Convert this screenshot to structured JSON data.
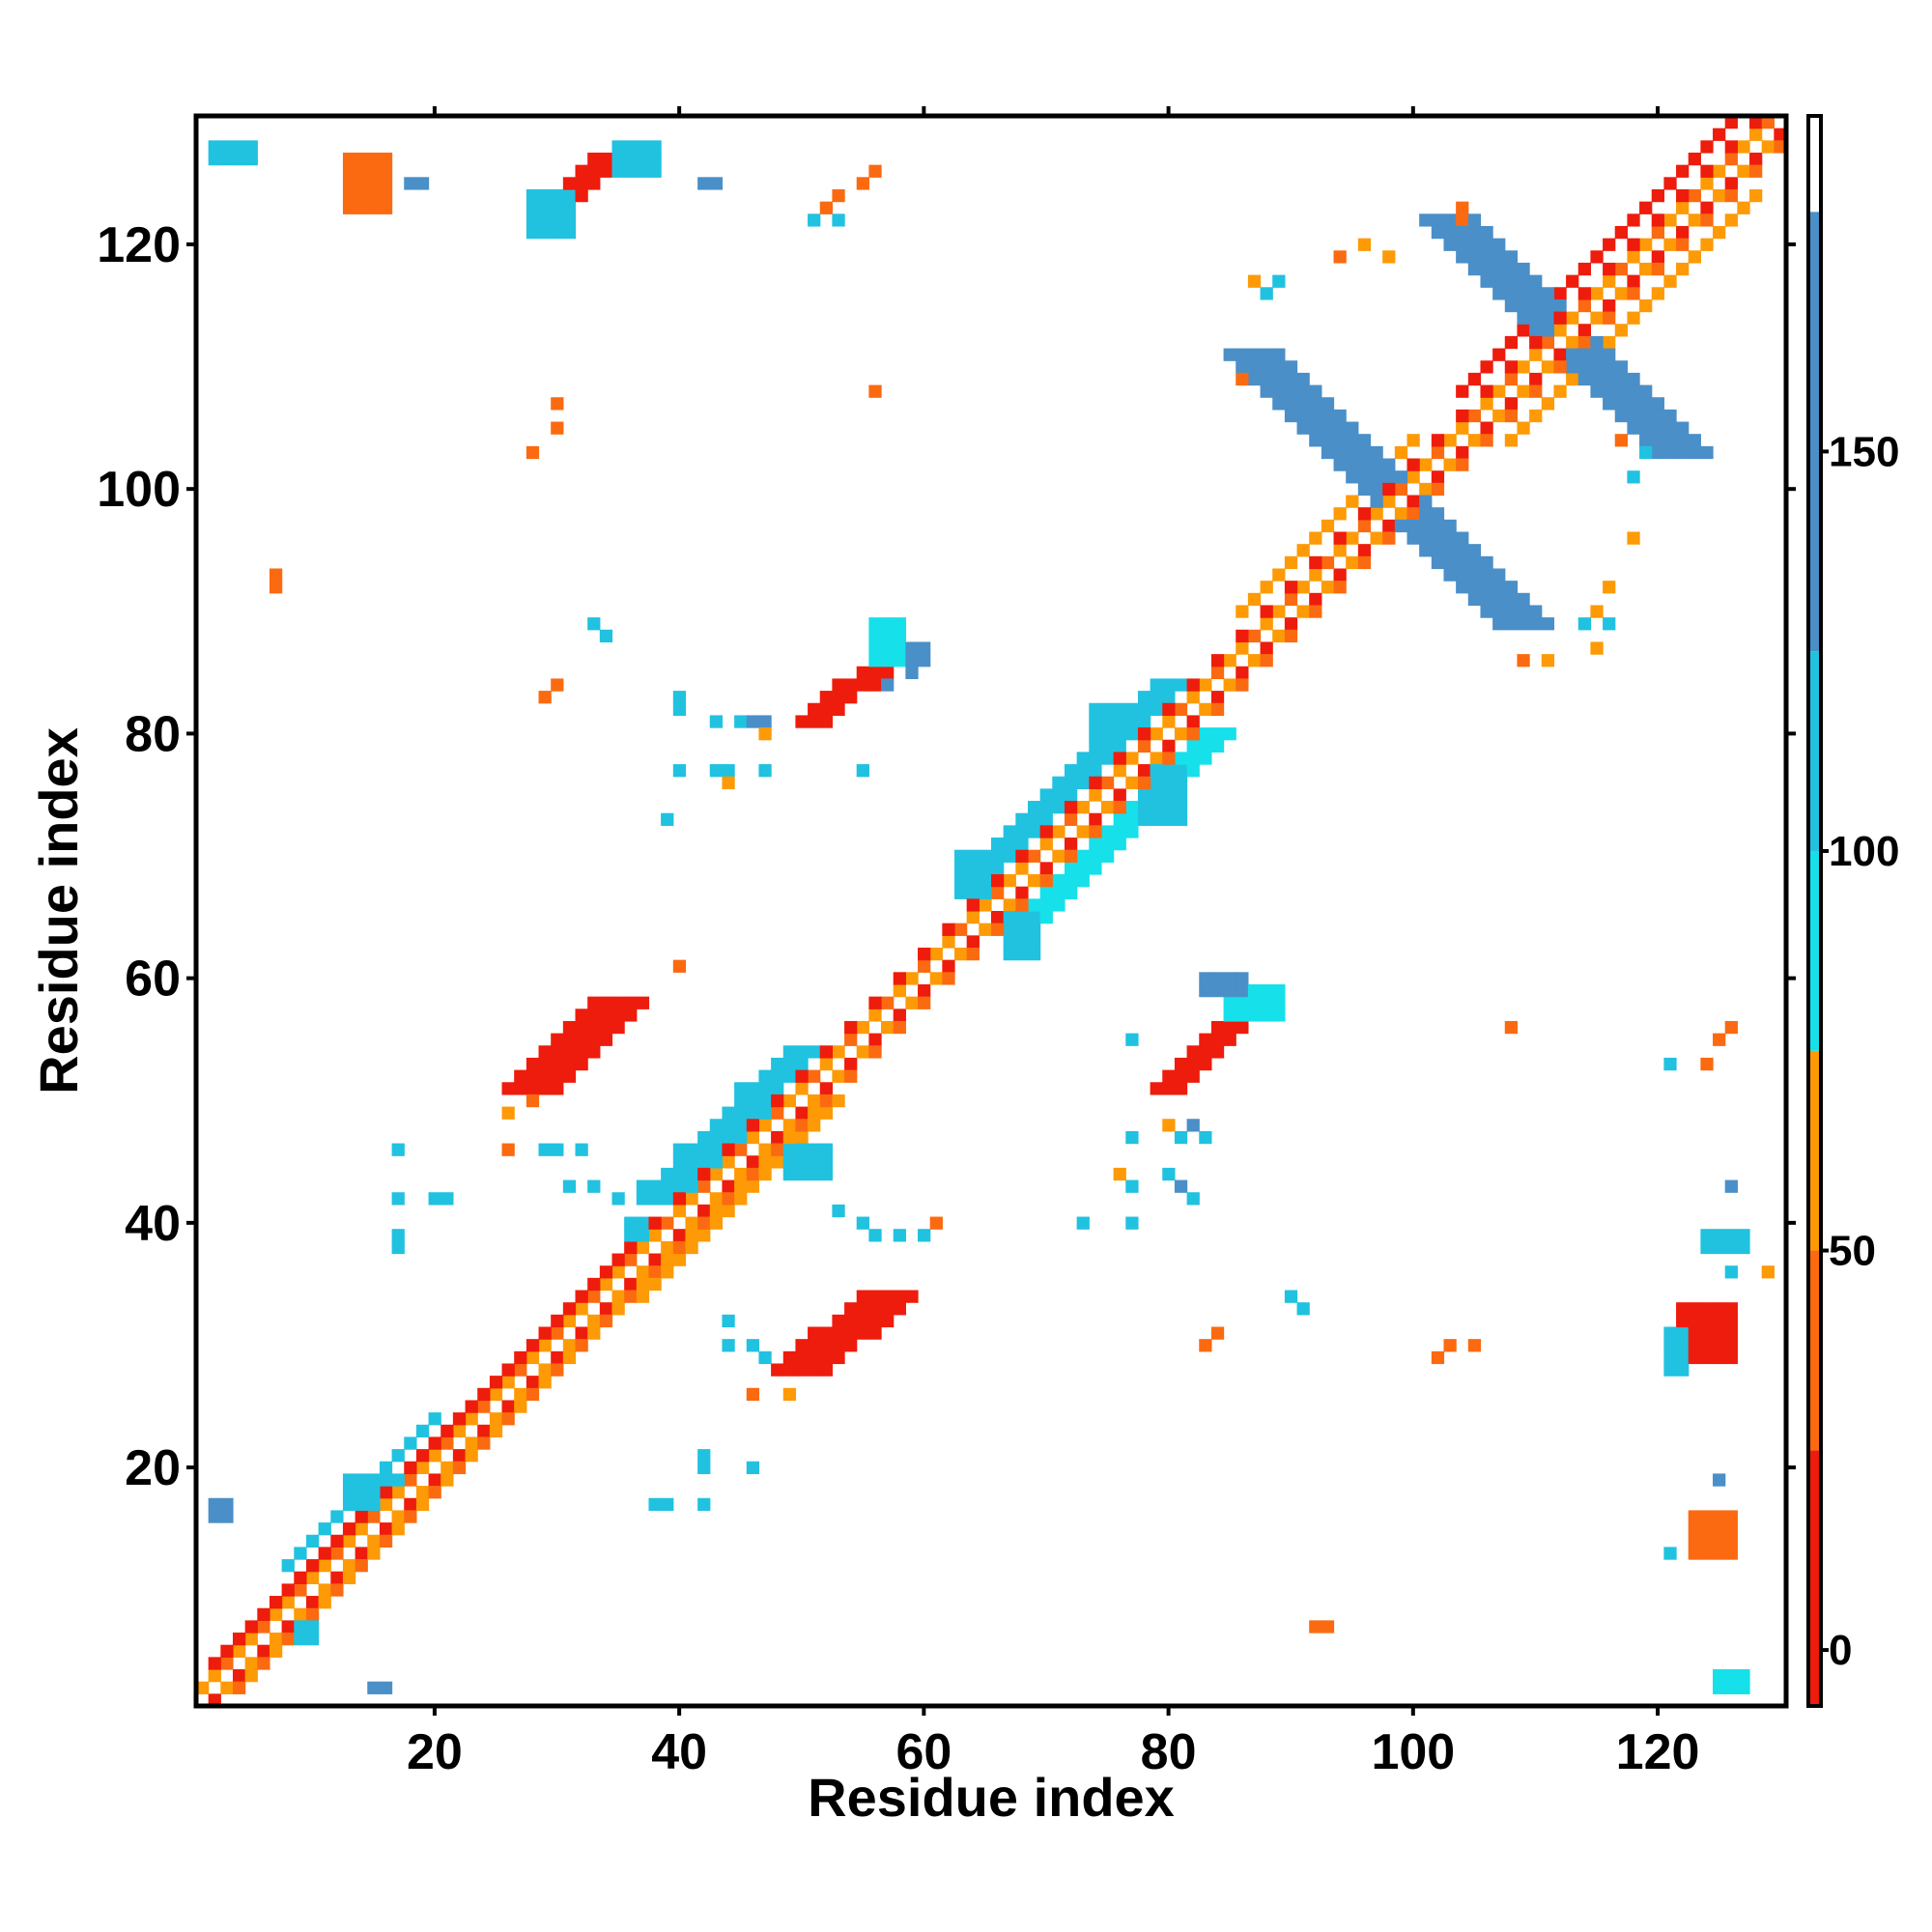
{
  "chart_data": {
    "type": "heatmap",
    "title": "",
    "xlabel": "Residue index",
    "ylabel": "Residue index",
    "xlim": [
      1,
      130
    ],
    "ylim": [
      1,
      130
    ],
    "x_ticks": [
      20,
      40,
      60,
      80,
      100,
      120
    ],
    "y_ticks": [
      20,
      40,
      60,
      80,
      100,
      120
    ],
    "colorbar": {
      "ticks": [
        0,
        50,
        100,
        150
      ],
      "range": [
        -7,
        192
      ],
      "stops": [
        {
          "from": -7,
          "to": 25,
          "color": "#ee1c0c"
        },
        {
          "from": 25,
          "to": 50,
          "color": "#fb6a10"
        },
        {
          "from": 50,
          "to": 75,
          "color": "#fd9a06"
        },
        {
          "from": 75,
          "to": 100,
          "color": "#16e0ea"
        },
        {
          "from": 100,
          "to": 125,
          "color": "#20c2e0"
        },
        {
          "from": 125,
          "to": 180,
          "color": "#4a8fc8"
        },
        {
          "from": 180,
          "to": 192,
          "color": "#ffffff"
        }
      ]
    },
    "cell_colors": {
      "red": "#ee1c0c",
      "orange": "#fb6a10",
      "light_orange": "#fd9a06",
      "cyan": "#16e0ea",
      "light_blue": "#20c2e0",
      "steel_blue": "#4a8fc8"
    },
    "regions": [
      {
        "kind": "band",
        "x1": 1,
        "y1": 1,
        "x2": 129,
        "y2": 129,
        "width": 2,
        "value": 35
      },
      {
        "kind": "band",
        "x1": 4,
        "y1": 2,
        "x2": 38,
        "y2": 36,
        "width": 1,
        "value": 60
      },
      {
        "kind": "band",
        "x1": 2,
        "y1": 4,
        "x2": 36,
        "y2": 38,
        "width": 1,
        "value": 10
      },
      {
        "kind": "band",
        "x1": 36,
        "y1": 34,
        "x2": 52,
        "y2": 50,
        "width": 2,
        "value": 60
      },
      {
        "kind": "band",
        "x1": 38,
        "y1": 42,
        "x2": 50,
        "y2": 54,
        "width": 2,
        "value": 110
      },
      {
        "kind": "band",
        "x1": 64,
        "y1": 68,
        "x2": 80,
        "y2": 84,
        "width": 2,
        "value": 110
      },
      {
        "kind": "band",
        "x1": 68,
        "y1": 64,
        "x2": 84,
        "y2": 80,
        "width": 2,
        "value": 90
      },
      {
        "kind": "band",
        "x1": 8,
        "y1": 12,
        "x2": 20,
        "y2": 24,
        "width": 1,
        "value": 110
      },
      {
        "kind": "band",
        "x1": 86,
        "y1": 90,
        "x2": 100,
        "y2": 104,
        "width": 1,
        "value": 60
      },
      {
        "kind": "band",
        "x1": 104,
        "y1": 108,
        "x2": 126,
        "y2": 130,
        "width": 1,
        "value": 10
      },
      {
        "kind": "band",
        "x1": 108,
        "y1": 104,
        "x2": 128,
        "y2": 124,
        "width": 1,
        "value": 60
      },
      {
        "kind": "band",
        "x1": 103,
        "y1": 122,
        "x2": 122,
        "y2": 103,
        "width": 3,
        "value": 150
      },
      {
        "kind": "band",
        "x1": 87,
        "y1": 111,
        "x2": 100,
        "y2": 98,
        "width": 3,
        "value": 140
      },
      {
        "kind": "band",
        "x1": 101,
        "y1": 97,
        "x2": 109,
        "y2": 89,
        "width": 3,
        "value": 140
      },
      {
        "kind": "band",
        "x1": 28,
        "y1": 51,
        "x2": 35,
        "y2": 58,
        "width": 3,
        "value": 10
      },
      {
        "kind": "band",
        "x1": 50,
        "y1": 28,
        "x2": 57,
        "y2": 34,
        "width": 3,
        "value": 10
      },
      {
        "kind": "band",
        "x1": 51,
        "y1": 81,
        "x2": 58,
        "y2": 87,
        "width": 2,
        "value": 10
      },
      {
        "kind": "band",
        "x1": 80,
        "y1": 51,
        "x2": 86,
        "y2": 57,
        "width": 2,
        "value": 10
      },
      {
        "kind": "band",
        "x1": 29,
        "y1": 122,
        "x2": 34,
        "y2": 127,
        "width": 2,
        "value": 10
      },
      {
        "kind": "rect",
        "x1": 13,
        "y1": 123,
        "x2": 16,
        "y2": 127,
        "value": 40
      },
      {
        "kind": "rect",
        "x1": 28,
        "y1": 121,
        "x2": 31,
        "y2": 124,
        "value": 120
      },
      {
        "kind": "rect",
        "x1": 35,
        "y1": 126,
        "x2": 38,
        "y2": 128,
        "value": 120
      },
      {
        "kind": "rect",
        "x1": 2,
        "y1": 127,
        "x2": 5,
        "y2": 128,
        "value": 120
      },
      {
        "kind": "rect",
        "x1": 56,
        "y1": 86,
        "x2": 58,
        "y2": 89,
        "value": 90
      },
      {
        "kind": "rect",
        "x1": 59,
        "y1": 86,
        "x2": 60,
        "y2": 87,
        "value": 150
      },
      {
        "kind": "rect",
        "x1": 85,
        "y1": 57,
        "x2": 89,
        "y2": 59,
        "value": 90
      },
      {
        "kind": "rect",
        "x1": 83,
        "y1": 59,
        "x2": 86,
        "y2": 60,
        "value": 150
      },
      {
        "kind": "rect",
        "x1": 122,
        "y1": 29,
        "x2": 126,
        "y2": 33,
        "value": 10
      },
      {
        "kind": "rect",
        "x1": 121,
        "y1": 28,
        "x2": 122,
        "y2": 31,
        "value": 110
      },
      {
        "kind": "rect",
        "x1": 124,
        "y1": 38,
        "x2": 127,
        "y2": 39,
        "value": 110
      },
      {
        "kind": "rect",
        "x1": 123,
        "y1": 13,
        "x2": 126,
        "y2": 16,
        "value": 40
      },
      {
        "kind": "rect",
        "x1": 125,
        "y1": 2,
        "x2": 127,
        "y2": 3,
        "value": 90
      },
      {
        "kind": "rect",
        "x1": 15,
        "y1": 2,
        "x2": 16,
        "y2": 2,
        "value": 150
      },
      {
        "kind": "rect",
        "x1": 2,
        "y1": 16,
        "x2": 3,
        "y2": 17,
        "value": 150
      },
      {
        "kind": "rect",
        "x1": 92,
        "y1": 7,
        "x2": 93,
        "y2": 7,
        "value": 40
      },
      {
        "kind": "rect",
        "x1": 40,
        "y1": 42,
        "x2": 43,
        "y2": 46,
        "value": 110
      },
      {
        "kind": "rect",
        "x1": 45,
        "y1": 47,
        "x2": 48,
        "y2": 51,
        "value": 100
      },
      {
        "kind": "rect",
        "x1": 36,
        "y1": 38,
        "x2": 39,
        "y2": 40,
        "value": 110
      },
      {
        "kind": "rect",
        "x1": 49,
        "y1": 44,
        "x2": 52,
        "y2": 46,
        "value": 100
      },
      {
        "kind": "rect",
        "x1": 63,
        "y1": 67,
        "x2": 65,
        "y2": 70,
        "value": 110
      },
      {
        "kind": "rect",
        "x1": 74,
        "y1": 78,
        "x2": 76,
        "y2": 82,
        "value": 110
      },
      {
        "kind": "rect",
        "x1": 78,
        "y1": 73,
        "x2": 81,
        "y2": 77,
        "value": 100
      },
      {
        "kind": "rect",
        "x1": 67,
        "y1": 62,
        "x2": 69,
        "y2": 65,
        "value": 100
      },
      {
        "kind": "rect",
        "x1": 13,
        "y1": 17,
        "x2": 18,
        "y2": 19,
        "value": 110
      },
      {
        "kind": "rect",
        "x1": 8,
        "y1": 6,
        "x2": 10,
        "y2": 8,
        "value": 110
      }
    ],
    "scatter_points": [
      [
        33,
        89,
        110
      ],
      [
        34,
        88,
        110
      ],
      [
        30,
        84,
        40
      ],
      [
        29,
        83,
        40
      ],
      [
        30,
        107,
        40
      ],
      [
        30,
        105,
        40
      ],
      [
        28,
        103,
        40
      ],
      [
        56,
        108,
        40
      ],
      [
        7,
        93,
        40
      ],
      [
        7,
        92,
        40
      ],
      [
        56,
        126,
        40
      ],
      [
        55,
        125,
        40
      ],
      [
        53,
        124,
        40
      ],
      [
        52,
        123,
        40
      ],
      [
        51,
        122,
        110
      ],
      [
        53,
        122,
        110
      ],
      [
        18,
        125,
        150
      ],
      [
        19,
        125,
        150
      ],
      [
        42,
        125,
        150
      ],
      [
        43,
        125,
        150
      ],
      [
        40,
        83,
        110
      ],
      [
        40,
        82,
        110
      ],
      [
        43,
        81,
        110
      ],
      [
        45,
        81,
        110
      ],
      [
        46,
        81,
        150
      ],
      [
        47,
        81,
        150
      ],
      [
        47,
        80,
        60
      ],
      [
        40,
        77,
        110
      ],
      [
        43,
        77,
        110
      ],
      [
        44,
        77,
        110
      ],
      [
        44,
        76,
        60
      ],
      [
        47,
        77,
        110
      ],
      [
        55,
        77,
        110
      ],
      [
        39,
        73,
        110
      ],
      [
        57,
        84,
        150
      ],
      [
        59,
        85,
        150
      ],
      [
        40,
        61,
        40
      ],
      [
        17,
        46,
        110
      ],
      [
        20,
        42,
        110
      ],
      [
        21,
        42,
        110
      ],
      [
        17,
        42,
        110
      ],
      [
        17,
        39,
        110
      ],
      [
        17,
        38,
        110
      ],
      [
        29,
        46,
        110
      ],
      [
        30,
        46,
        110
      ],
      [
        32,
        46,
        110
      ],
      [
        26,
        49,
        60
      ],
      [
        26,
        46,
        40
      ],
      [
        28,
        50,
        40
      ],
      [
        31,
        43,
        110
      ],
      [
        33,
        43,
        110
      ],
      [
        35,
        42,
        110
      ],
      [
        37,
        43,
        110
      ],
      [
        56,
        39,
        110
      ],
      [
        58,
        39,
        110
      ],
      [
        60,
        39,
        110
      ],
      [
        61,
        40,
        40
      ],
      [
        53,
        41,
        110
      ],
      [
        55,
        40,
        110
      ],
      [
        46,
        26,
        40
      ],
      [
        49,
        26,
        60
      ],
      [
        46,
        20,
        110
      ],
      [
        42,
        21,
        110
      ],
      [
        42,
        20,
        110
      ],
      [
        38,
        17,
        110
      ],
      [
        39,
        17,
        110
      ],
      [
        42,
        17,
        110
      ],
      [
        44,
        32,
        110
      ],
      [
        44,
        30,
        110
      ],
      [
        46,
        30,
        110
      ],
      [
        47,
        29,
        110
      ],
      [
        46,
        30,
        110
      ],
      [
        73,
        40,
        110
      ],
      [
        77,
        40,
        110
      ],
      [
        77,
        43,
        110
      ],
      [
        76,
        44,
        60
      ],
      [
        80,
        44,
        110
      ],
      [
        81,
        43,
        150
      ],
      [
        82,
        42,
        110
      ],
      [
        81,
        47,
        110
      ],
      [
        83,
        47,
        110
      ],
      [
        82,
        48,
        150
      ],
      [
        80,
        48,
        60
      ],
      [
        77,
        47,
        110
      ],
      [
        77,
        55,
        110
      ],
      [
        90,
        34,
        110
      ],
      [
        91,
        33,
        110
      ],
      [
        84,
        31,
        40
      ],
      [
        83,
        30,
        40
      ],
      [
        103,
        30,
        40
      ],
      [
        105,
        30,
        40
      ],
      [
        102,
        29,
        40
      ],
      [
        108,
        56,
        40
      ],
      [
        126,
        56,
        40
      ],
      [
        125,
        55,
        40
      ],
      [
        124,
        53,
        40
      ],
      [
        121,
        53,
        110
      ],
      [
        126,
        43,
        150
      ],
      [
        129,
        36,
        60
      ],
      [
        126,
        36,
        110
      ],
      [
        125,
        19,
        150
      ],
      [
        121,
        13,
        110
      ],
      [
        94,
        119,
        40
      ],
      [
        96,
        120,
        60
      ],
      [
        98,
        119,
        60
      ],
      [
        89,
        117,
        110
      ],
      [
        88,
        116,
        110
      ],
      [
        87,
        117,
        60
      ],
      [
        86,
        109,
        40
      ],
      [
        117,
        104,
        40
      ],
      [
        118,
        101,
        110
      ],
      [
        119,
        103,
        110
      ],
      [
        118,
        96,
        60
      ],
      [
        116,
        92,
        60
      ],
      [
        115,
        90,
        60
      ],
      [
        114,
        89,
        110
      ],
      [
        116,
        89,
        110
      ],
      [
        115,
        87,
        60
      ],
      [
        109,
        86,
        40
      ],
      [
        111,
        86,
        60
      ],
      [
        104,
        123,
        40
      ],
      [
        104,
        122,
        40
      ]
    ]
  }
}
